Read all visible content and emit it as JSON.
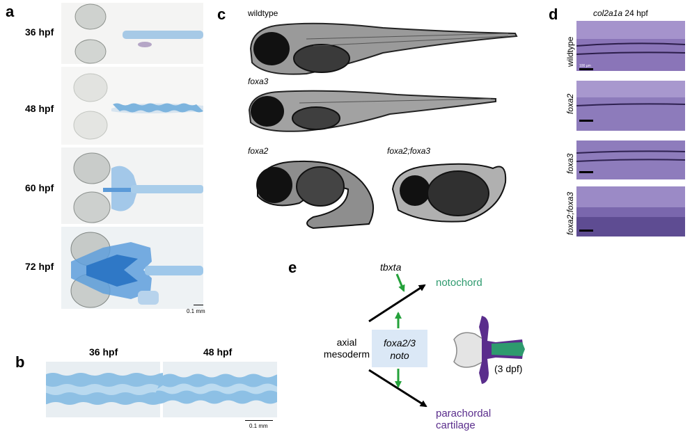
{
  "panel_a": {
    "letter": "a",
    "stages": [
      "36 hpf",
      "48 hpf",
      "60 hpf",
      "72 hpf"
    ],
    "scale_bar": "0.1 mm"
  },
  "panel_b": {
    "letter": "b",
    "stages": [
      "36 hpf",
      "48 hpf"
    ],
    "scale_bar": "0.1 mm"
  },
  "panel_c": {
    "letter": "c",
    "genotypes": [
      "wildtype",
      "foxa3",
      "foxa2",
      "foxa2;foxa3"
    ]
  },
  "panel_d": {
    "letter": "d",
    "title_gene": "col2a1a",
    "title_stage": "24 hpf",
    "genotypes": [
      "wildtype",
      "foxa2",
      "foxa3",
      "foxa2;foxa3"
    ],
    "scale_bar": "100 µm"
  },
  "panel_e": {
    "letter": "e",
    "input_gene": "tbxta",
    "notochord": "notochord",
    "source_line1": "axial",
    "source_line2": "mesoderm",
    "box_line1": "foxa2/3",
    "box_line2": "noto",
    "parachordal_line1": "parachordal",
    "parachordal_line2": "cartilage",
    "stage": "(3 dpf)",
    "colors": {
      "notochord": "#2e9a6e",
      "parachordal": "#5a2d8c",
      "box": "#dbe8f6",
      "arrow_green": "#24a13a"
    }
  }
}
